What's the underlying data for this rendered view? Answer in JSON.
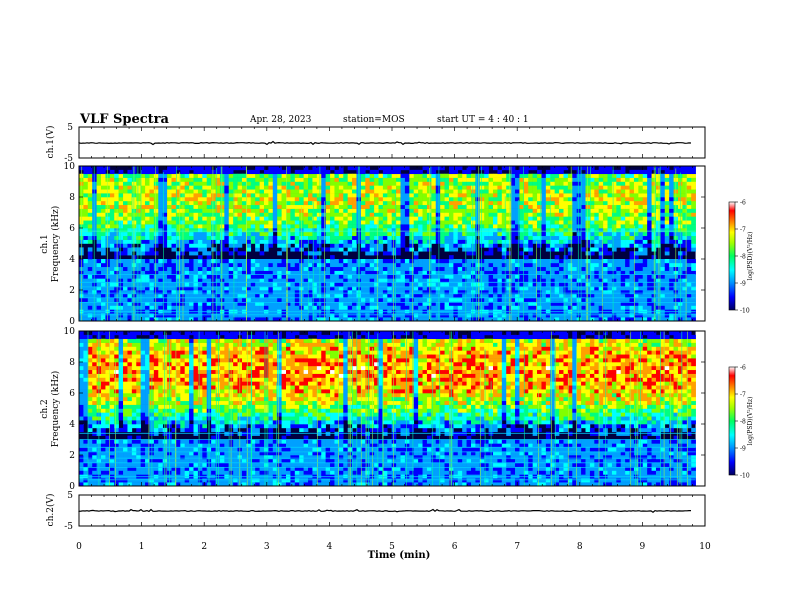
{
  "header": {
    "title": "VLF Spectra",
    "date": "Apr. 28, 2023",
    "station": "station=MOS",
    "start_ut": "start UT =  4 : 40 : 1"
  },
  "chart_data": [
    {
      "type": "line",
      "panel": "ch1-waveform",
      "ylabel": "ch.1(V)",
      "ylim": [
        -5,
        5
      ],
      "y_ticks": [
        "5",
        "-5"
      ],
      "x_range": [
        0,
        10
      ],
      "baseline_value": 0,
      "grid": false
    },
    {
      "type": "heatmap",
      "panel": "ch1-spectrogram",
      "ylabel_line1": "ch.1",
      "ylabel_line2": "Frequency (kHz)",
      "ylim": [
        0,
        10
      ],
      "y_ticks": [
        "0",
        "2",
        "4",
        "6",
        "8",
        "10"
      ],
      "x_range": [
        0,
        9.85
      ],
      "colorbar": {
        "label": "log(PSD)(V²/Hz)",
        "range": [
          -10,
          -6
        ],
        "ticks": [
          "-6",
          "-7",
          "-8",
          "-9",
          "-10"
        ]
      },
      "emission_band_khz": [
        4,
        9.5
      ],
      "line_frequencies_khz": [
        0.4,
        0.6,
        1.2,
        1.5,
        1.8,
        2.2,
        2.5,
        3.0,
        5.8
      ]
    },
    {
      "type": "heatmap",
      "panel": "ch2-spectrogram",
      "ylabel_line1": "ch.2",
      "ylabel_line2": "Frequency (kHz)",
      "ylim": [
        0,
        10
      ],
      "y_ticks": [
        "0",
        "2",
        "4",
        "6",
        "8",
        "10"
      ],
      "x_range": [
        0,
        9.85
      ],
      "colorbar": {
        "label": "log(PSD)(V²/Hz)",
        "range": [
          -10,
          -6
        ],
        "ticks": [
          "-6",
          "-7",
          "-8",
          "-9",
          "-10"
        ]
      },
      "emission_band_khz": [
        3,
        9.5
      ],
      "line_frequencies_khz": [
        0.4,
        0.6,
        1.2,
        1.5,
        1.8,
        2.2,
        2.5,
        3.0,
        3.4
      ]
    },
    {
      "type": "line",
      "panel": "ch2-waveform",
      "ylabel": "ch.2(V)",
      "ylim": [
        -5,
        5
      ],
      "y_ticks": [
        "5",
        "-5"
      ],
      "x_range": [
        0,
        10
      ],
      "baseline_value": 0,
      "grid": false
    }
  ],
  "x_axis": {
    "label": "Time (min)",
    "range": [
      0,
      10
    ],
    "ticks": [
      "0",
      "1",
      "2",
      "3",
      "4",
      "5",
      "6",
      "7",
      "8",
      "9",
      "10"
    ]
  },
  "colors": {
    "colormap": [
      "#000080",
      "#0000ff",
      "#00a0ff",
      "#00ffff",
      "#00ff80",
      "#80ff00",
      "#ffff00",
      "#ffa000",
      "#ff0000",
      "#ffffff"
    ],
    "axis": "#000000",
    "background": "#ffffff"
  }
}
